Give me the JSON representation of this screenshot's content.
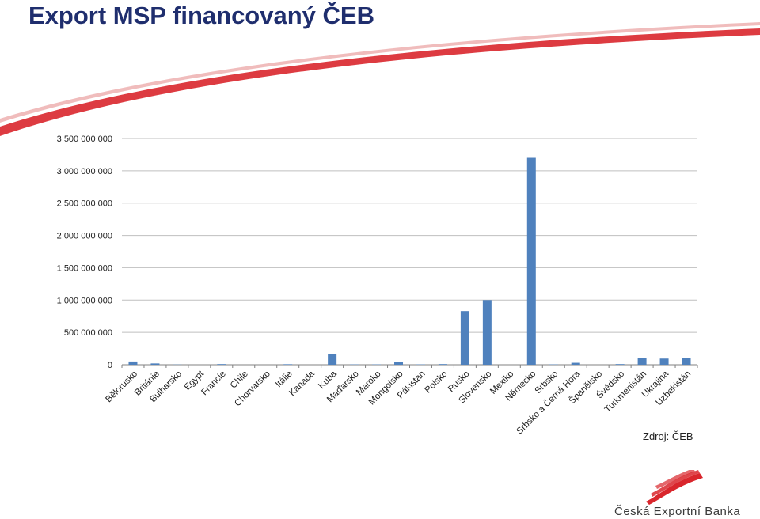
{
  "slide": {
    "title": "Export MSP financovaný ČEB",
    "source": "Zdroj: ČEB",
    "brand_name": "Česká Exportní Banka",
    "accent_color": "#d9262c",
    "title_color": "#1f2e6e"
  },
  "chart_data": {
    "type": "bar",
    "title": "",
    "xlabel": "",
    "ylabel": "",
    "ylim": [
      0,
      3500000000
    ],
    "yticks": [
      0,
      500000000,
      1000000000,
      1500000000,
      2000000000,
      2500000000,
      3000000000,
      3500000000
    ],
    "ytick_labels": [
      "0",
      "500 000 000",
      "1 000 000 000",
      "1 500 000 000",
      "2 000 000 000",
      "2 500 000 000",
      "3 000 000 000",
      "3 500 000 000"
    ],
    "grid": true,
    "bar_color": "#4f81bd",
    "categories": [
      "Bělorusko",
      "Británie",
      "Bulharsko",
      "Egypt",
      "Francie",
      "Chile",
      "Chorvatsko",
      "Itálie",
      "Kanada",
      "Kuba",
      "Maďarsko",
      "Maroko",
      "Mongolsko",
      "Pákistán",
      "Polsko",
      "Rusko",
      "Slovensko",
      "Mexiko",
      "Německo",
      "Srbsko",
      "Srbsko a Černá Hora",
      "Španělsko",
      "Švédsko",
      "Turkmenistán",
      "Ukrajina",
      "Uzbekistán"
    ],
    "values": [
      50000000,
      20000000,
      3000000,
      0,
      10000000,
      0,
      0,
      8000000,
      0,
      165000000,
      5000000,
      5000000,
      40000000,
      5000000,
      10000000,
      830000000,
      1000000000,
      0,
      3200000000,
      5000000,
      30000000,
      0,
      10000000,
      110000000,
      95000000,
      110000000
    ]
  }
}
